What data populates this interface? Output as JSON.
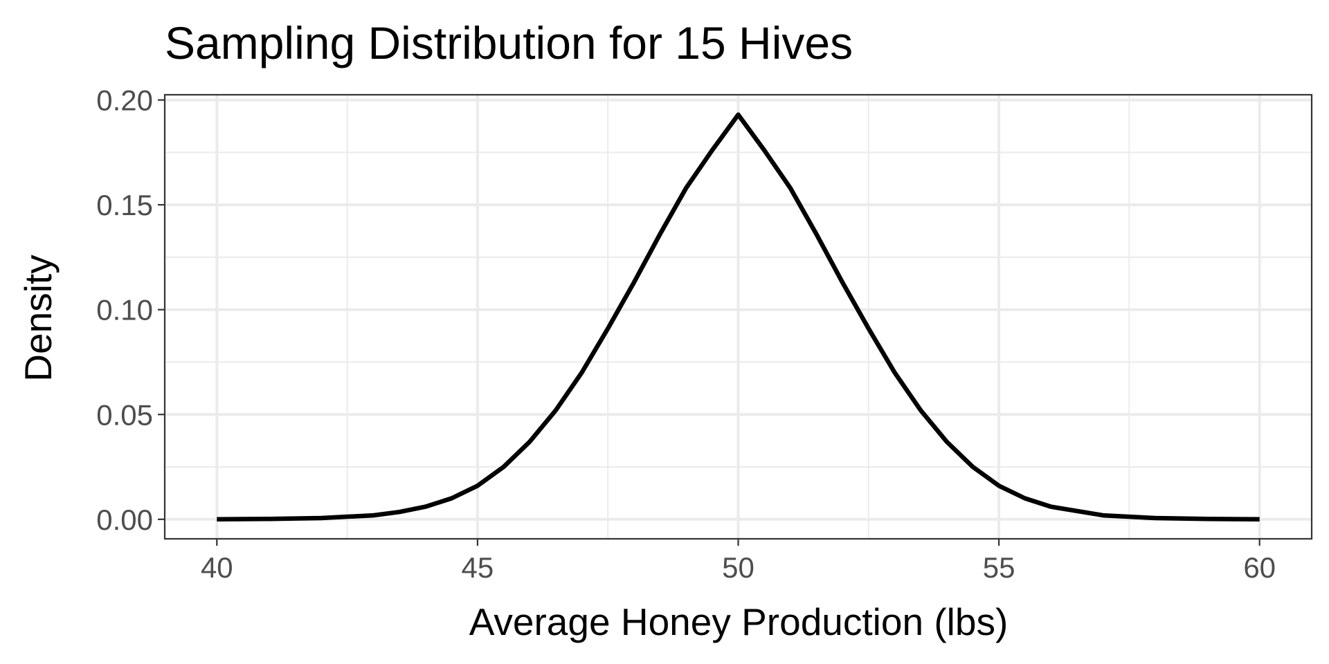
{
  "chart_data": {
    "type": "line",
    "title": "Sampling Distribution for 15 Hives",
    "xlabel": "Average Honey Production (lbs)",
    "ylabel": "Density",
    "xlim": [
      39,
      61
    ],
    "ylim": [
      -0.0093,
      0.2025
    ],
    "x_ticks": [
      40,
      45,
      50,
      55,
      60
    ],
    "x_tick_labels": [
      "40",
      "45",
      "50",
      "55",
      "60"
    ],
    "x_minor_ticks": [
      42.5,
      47.5,
      52.5,
      57.5
    ],
    "y_ticks": [
      0.0,
      0.05,
      0.1,
      0.15,
      0.2
    ],
    "y_tick_labels": [
      "0.00",
      "0.05",
      "0.10",
      "0.15",
      "0.20"
    ],
    "y_minor_ticks": [
      0.025,
      0.075,
      0.125,
      0.175
    ],
    "grid": true,
    "series": [
      {
        "color": "#000000",
        "x": [
          40,
          41,
          42,
          43,
          43.5,
          44,
          44.5,
          45,
          45.5,
          46,
          46.5,
          47,
          47.5,
          48,
          48.5,
          49,
          49.5,
          50,
          50.5,
          51,
          51.5,
          52,
          52.5,
          53,
          53.5,
          54,
          54.5,
          55,
          55.5,
          56,
          57,
          58,
          59,
          60
        ],
        "y": [
          0.0,
          0.0002,
          0.0006,
          0.0019,
          0.0035,
          0.006,
          0.01,
          0.016,
          0.025,
          0.037,
          0.052,
          0.07,
          0.091,
          0.113,
          0.136,
          0.158,
          0.176,
          0.193,
          0.176,
          0.158,
          0.136,
          0.113,
          0.091,
          0.07,
          0.052,
          0.037,
          0.025,
          0.016,
          0.01,
          0.006,
          0.0019,
          0.0006,
          0.0002,
          0.0
        ]
      }
    ]
  }
}
